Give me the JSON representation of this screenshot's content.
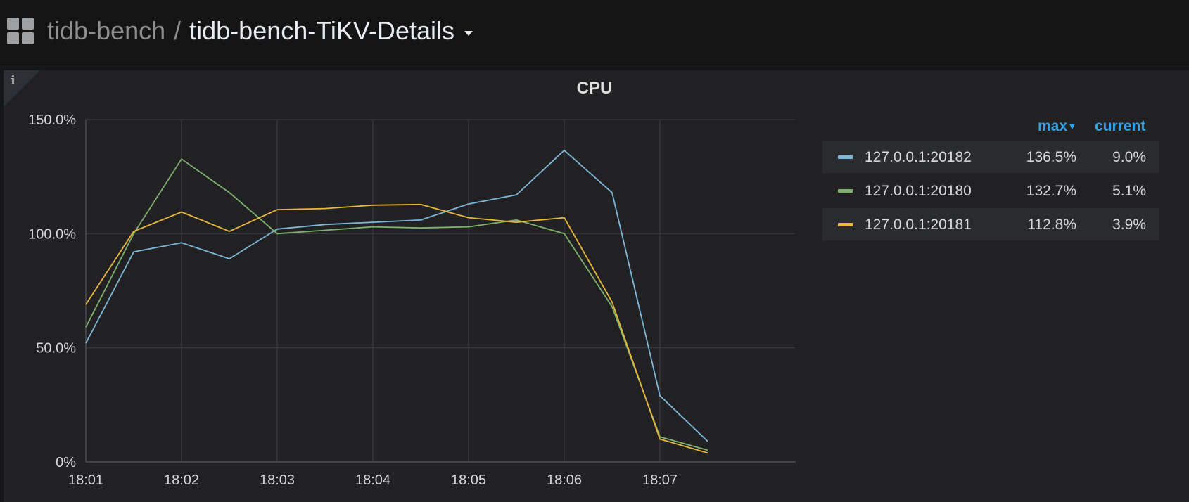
{
  "breadcrumb": {
    "folder": "tidb-bench",
    "separator": "/",
    "dashboard": "tidb-bench-TiKV-Details"
  },
  "icons": {
    "apps": "grid-icon",
    "dropdown": "chevron-down-icon",
    "info": "info-icon"
  },
  "panel": {
    "title": "CPU",
    "info_glyph": "i"
  },
  "legend": {
    "col_max": "max",
    "col_current": "current",
    "rows": [
      {
        "name": "127.0.0.1:20182",
        "max": "136.5%",
        "current": "9.0%",
        "color": "#7eb8d9"
      },
      {
        "name": "127.0.0.1:20180",
        "max": "132.7%",
        "current": "5.1%",
        "color": "#7eb26d"
      },
      {
        "name": "127.0.0.1:20181",
        "max": "112.8%",
        "current": "3.9%",
        "color": "#eab839"
      }
    ]
  },
  "chart_data": {
    "type": "line",
    "x": [
      "18:01:00",
      "18:01:30",
      "18:02:00",
      "18:02:30",
      "18:03:00",
      "18:03:30",
      "18:04:00",
      "18:04:30",
      "18:05:00",
      "18:05:30",
      "18:06:00",
      "18:06:30",
      "18:07:00",
      "18:07:30"
    ],
    "x_ticks": [
      "18:01",
      "18:02",
      "18:03",
      "18:04",
      "18:05",
      "18:06",
      "18:07"
    ],
    "y_ticks": [
      "0%",
      "50.0%",
      "100.0%",
      "150.0%"
    ],
    "ylim": [
      0,
      150
    ],
    "grid": true,
    "legend_position": "right",
    "series": [
      {
        "name": "127.0.0.1:20182",
        "color": "#7eb8d9",
        "values": [
          52,
          92,
          96,
          89,
          102,
          104,
          105,
          106,
          113,
          117,
          136.5,
          118,
          29,
          9
        ]
      },
      {
        "name": "127.0.0.1:20180",
        "color": "#7eb26d",
        "values": [
          59,
          100,
          132.7,
          118,
          100,
          101.5,
          103,
          102.5,
          103,
          106,
          100,
          68,
          11,
          5.1
        ]
      },
      {
        "name": "127.0.0.1:20181",
        "color": "#eab839",
        "values": [
          69,
          101,
          109.5,
          101,
          110.5,
          111,
          112.5,
          112.8,
          107,
          105,
          107,
          70,
          10,
          3.9
        ]
      }
    ]
  }
}
